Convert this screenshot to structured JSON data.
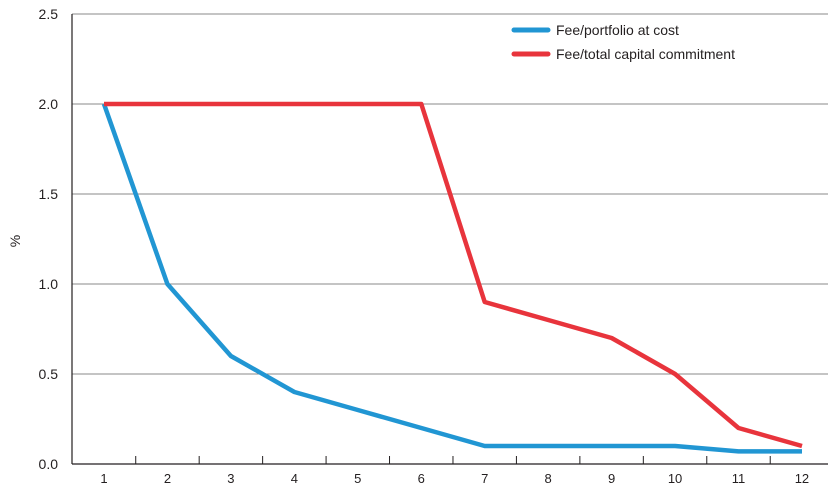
{
  "chart_data": {
    "type": "line",
    "title": "",
    "xlabel": "",
    "ylabel": "%",
    "x": [
      1,
      2,
      3,
      4,
      5,
      6,
      7,
      8,
      9,
      10,
      11,
      12
    ],
    "x_tick_labels": [
      "1",
      "2",
      "3",
      "4",
      "5",
      "6",
      "7",
      "8",
      "9",
      "10",
      "11",
      "12"
    ],
    "y_tick_labels": [
      "0.0",
      "0.5",
      "1.0",
      "1.5",
      "2.0",
      "2.5"
    ],
    "ylim": [
      0,
      2.5
    ],
    "grid": "horizontal",
    "legend_position": "top-right",
    "series": [
      {
        "name": "Fee/portfolio at cost",
        "color": "#2196d3",
        "values": [
          2.0,
          1.0,
          0.6,
          0.4,
          0.3,
          0.2,
          0.1,
          0.1,
          0.1,
          0.1,
          0.07,
          0.07
        ]
      },
      {
        "name": "Fee/total capital commitment",
        "color": "#e8343c",
        "values": [
          2.0,
          2.0,
          2.0,
          2.0,
          2.0,
          2.0,
          0.9,
          0.8,
          0.7,
          0.5,
          0.2,
          0.1
        ]
      }
    ]
  }
}
